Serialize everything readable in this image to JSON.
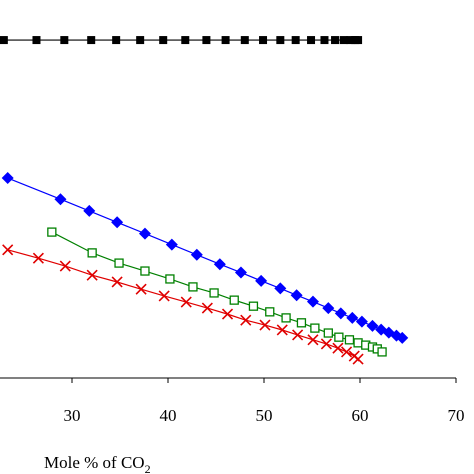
{
  "chart_data": {
    "type": "line",
    "xlabel": {
      "text": "Mole % of CO",
      "subscript": "2"
    },
    "xlim": [
      22.5,
      70
    ],
    "xticks": [
      30,
      40,
      50,
      60,
      70
    ],
    "ylim": [
      0,
      100
    ],
    "series": [
      {
        "color": "#000000",
        "marker": "square",
        "x": [
          22.9,
          26.3,
          29.2,
          32.0,
          34.6,
          37.1,
          39.5,
          41.8,
          44.0,
          46.0,
          48.0,
          49.9,
          51.7,
          53.3,
          54.9,
          56.3,
          57.4,
          58.3,
          59.0,
          59.5,
          59.8
        ],
        "values": [
          89.4,
          89.4,
          89.4,
          89.4,
          89.4,
          89.4,
          89.4,
          89.4,
          89.4,
          89.4,
          89.4,
          89.4,
          89.4,
          89.4,
          89.4,
          89.4,
          89.4,
          89.4,
          89.4,
          89.4,
          89.4
        ]
      },
      {
        "color": "#0000ff",
        "marker": "diamond",
        "x": [
          23.3,
          28.8,
          31.8,
          34.7,
          37.6,
          40.4,
          43.0,
          45.4,
          47.6,
          49.7,
          51.7,
          53.4,
          55.1,
          56.7,
          58.0,
          59.2,
          60.2,
          61.3,
          62.2,
          63.0,
          63.8,
          64.4
        ],
        "values": [
          52.9,
          47.3,
          44.2,
          41.2,
          38.2,
          35.3,
          32.6,
          30.1,
          27.9,
          25.7,
          23.7,
          21.9,
          20.2,
          18.5,
          17.1,
          15.9,
          14.9,
          13.8,
          12.8,
          12.0,
          11.2,
          10.6
        ]
      },
      {
        "color": "#008000",
        "marker": "open-square",
        "x": [
          27.9,
          32.1,
          34.9,
          37.6,
          40.2,
          42.6,
          44.8,
          46.9,
          48.9,
          50.6,
          52.3,
          53.9,
          55.3,
          56.7,
          57.8,
          58.9,
          59.8,
          60.6,
          61.3,
          61.8,
          62.3
        ],
        "values": [
          38.6,
          33.1,
          30.4,
          28.3,
          26.2,
          24.1,
          22.5,
          20.6,
          19.0,
          17.5,
          15.9,
          14.6,
          13.2,
          11.9,
          10.8,
          10.1,
          9.3,
          8.7,
          8.2,
          7.7,
          6.9
        ]
      },
      {
        "color": "#e00000",
        "marker": "cross",
        "x": [
          23.3,
          26.5,
          29.3,
          32.1,
          34.7,
          37.2,
          39.6,
          41.9,
          44.1,
          46.2,
          48.1,
          50.1,
          51.9,
          53.5,
          55.1,
          56.5,
          57.7,
          58.6,
          59.4,
          59.8
        ],
        "values": [
          33.9,
          31.7,
          29.6,
          27.2,
          25.4,
          23.5,
          21.7,
          20.1,
          18.5,
          16.9,
          15.3,
          14.0,
          12.7,
          11.4,
          10.1,
          9.0,
          7.9,
          6.9,
          5.8,
          5.0
        ]
      }
    ]
  }
}
